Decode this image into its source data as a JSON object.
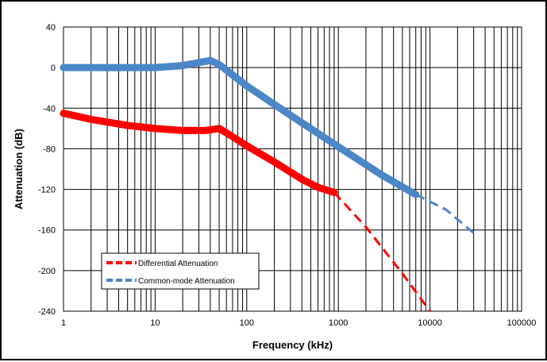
{
  "chart_data": {
    "type": "line",
    "title": "",
    "xlabel": "Frequency (kHz)",
    "ylabel": "Attenuation (dB)",
    "x_scale": "log",
    "xlim": [
      1,
      100000
    ],
    "ylim": [
      -240,
      40
    ],
    "x_ticks": [
      "1",
      "10",
      "100",
      "1000",
      "10000",
      "100000"
    ],
    "y_ticks": [
      "40",
      "0",
      "-40",
      "-80",
      "-120",
      "-160",
      "-200",
      "-240"
    ],
    "grid": true,
    "legend_position": "lower-left",
    "series": [
      {
        "name": "Differential Attenuation",
        "color": "#ff0000",
        "measured": [
          [
            1,
            -45
          ],
          [
            2,
            -51
          ],
          [
            5,
            -57
          ],
          [
            10,
            -60
          ],
          [
            20,
            -62
          ],
          [
            35,
            -62
          ],
          [
            50,
            -60
          ],
          [
            70,
            -68
          ],
          [
            100,
            -77
          ],
          [
            200,
            -93
          ],
          [
            400,
            -110
          ],
          [
            600,
            -118
          ],
          [
            900,
            -123
          ]
        ],
        "extrapolated": [
          [
            900,
            -123
          ],
          [
            2000,
            -157
          ],
          [
            5000,
            -203
          ],
          [
            10000,
            -240
          ]
        ]
      },
      {
        "name": "Common-mode Attenuation",
        "color": "#4a86c8",
        "measured": [
          [
            1,
            0
          ],
          [
            5,
            0
          ],
          [
            10,
            0
          ],
          [
            20,
            2
          ],
          [
            30,
            5
          ],
          [
            40,
            7
          ],
          [
            50,
            3
          ],
          [
            100,
            -18
          ],
          [
            300,
            -47
          ],
          [
            1000,
            -78
          ],
          [
            3000,
            -106
          ],
          [
            7000,
            -125
          ]
        ],
        "extrapolated": [
          [
            7000,
            -125
          ],
          [
            15000,
            -140
          ],
          [
            30000,
            -163
          ]
        ]
      }
    ]
  }
}
